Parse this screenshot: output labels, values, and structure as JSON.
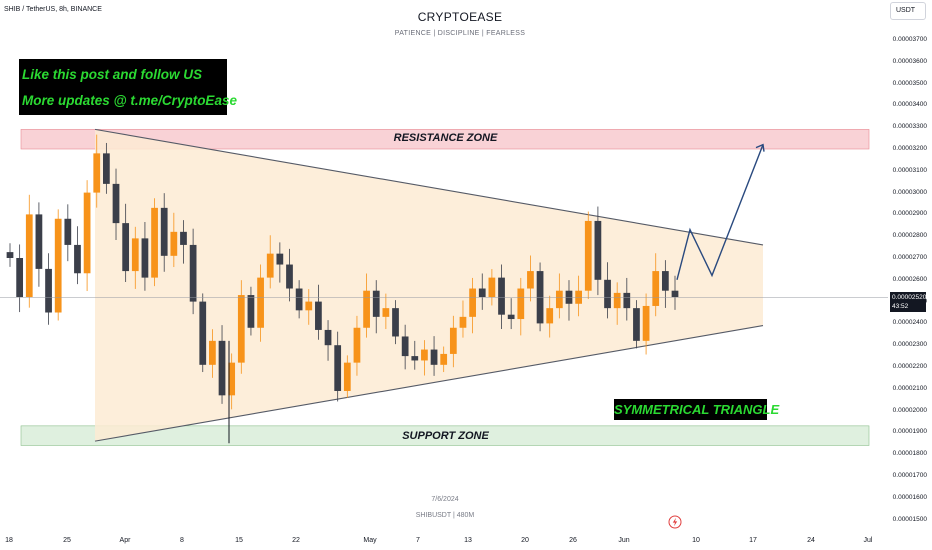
{
  "header": {
    "symbol": "SHIB / TetherUS, 8h, BINANCE",
    "title": "CRYPTOEASE",
    "subtitle": "PATIENCE  |  DISCIPLINE  |  FEARLESS",
    "currency": "USDT"
  },
  "annotations": {
    "promo_line1": "Like this post and follow US",
    "promo_line2": "More updates @ t.me/CryptoEase",
    "resistance": "RESISTANCE ZONE",
    "support": "SUPPORT ZONE",
    "pattern": "SYMMETRICAL TRIANGLE"
  },
  "watermark": {
    "date": "7/6/2024",
    "ticker": "SHIBUSDT  |  480M"
  },
  "last_price": {
    "price": "0.00002520",
    "countdown": "43:52"
  },
  "icons": {
    "replay": "lightning-bolt-icon"
  },
  "colors": {
    "up": "#f7931a",
    "down": "#3b3f4a",
    "resistance_fill": "#f9d2d6",
    "support_fill": "#dff0df",
    "triangle_fill": "#fdebd3",
    "projection": "#2a4a7f"
  },
  "chart_data": {
    "type": "candlestick",
    "price_axis": {
      "min": 1.5e-05,
      "max": 3.7e-05,
      "ticks": [
        "0.00003700",
        "0.00003600",
        "0.00003500",
        "0.00003400",
        "0.00003300",
        "0.00003200",
        "0.00003100",
        "0.00003000",
        "0.00002900",
        "0.00002800",
        "0.00002700",
        "0.00002600",
        "0.00002500",
        "0.00002400",
        "0.00002300",
        "0.00002200",
        "0.00002100",
        "0.00002000",
        "0.00001900",
        "0.00001800",
        "0.00001700",
        "0.00001600",
        "0.00001500"
      ]
    },
    "time_axis": {
      "labels": [
        "18",
        "25",
        "Apr",
        "8",
        "15",
        "22",
        "May",
        "7",
        "13",
        "20",
        "26",
        "Jun",
        "10",
        "17",
        "24",
        "Jul"
      ]
    },
    "resistance_zone": [
      3.2e-05,
      3.29e-05
    ],
    "support_zone": [
      1.84e-05,
      1.93e-05
    ],
    "triangle": {
      "upper": [
        {
          "t": "Mar 28",
          "p": 3.29e-05
        },
        {
          "t": "Jun 18",
          "p": 2.76e-05
        }
      ],
      "lower": [
        {
          "t": "Mar 28",
          "p": 1.86e-05
        },
        {
          "t": "Jun 18",
          "p": 2.39e-05
        }
      ]
    },
    "projection": [
      2.6e-05,
      2.83e-05,
      2.62e-05,
      3.22e-05
    ],
    "series": [
      2.7e-05,
      2.52e-05,
      2.9e-05,
      2.65e-05,
      2.45e-05,
      2.88e-05,
      2.76e-05,
      2.63e-05,
      3e-05,
      3.18e-05,
      3.04e-05,
      2.86e-05,
      2.64e-05,
      2.79e-05,
      2.61e-05,
      2.93e-05,
      2.71e-05,
      2.82e-05,
      2.76e-05,
      2.5e-05,
      2.21e-05,
      2.32e-05,
      2.07e-05,
      2.22e-05,
      2.53e-05,
      2.38e-05,
      2.61e-05,
      2.72e-05,
      2.67e-05,
      2.56e-05,
      2.46e-05,
      2.5e-05,
      2.37e-05,
      2.3e-05,
      2.09e-05,
      2.22e-05,
      2.38e-05,
      2.55e-05,
      2.43e-05,
      2.47e-05,
      2.34e-05,
      2.25e-05,
      2.23e-05,
      2.28e-05,
      2.21e-05,
      2.26e-05,
      2.38e-05,
      2.43e-05,
      2.56e-05,
      2.52e-05,
      2.61e-05,
      2.44e-05,
      2.42e-05,
      2.56e-05,
      2.64e-05,
      2.4e-05,
      2.47e-05,
      2.55e-05,
      2.49e-05,
      2.55e-05,
      2.87e-05,
      2.6e-05,
      2.47e-05,
      2.54e-05,
      2.47e-05,
      2.32e-05,
      2.48e-05,
      2.64e-05,
      2.55e-05,
      2.52e-05
    ]
  }
}
